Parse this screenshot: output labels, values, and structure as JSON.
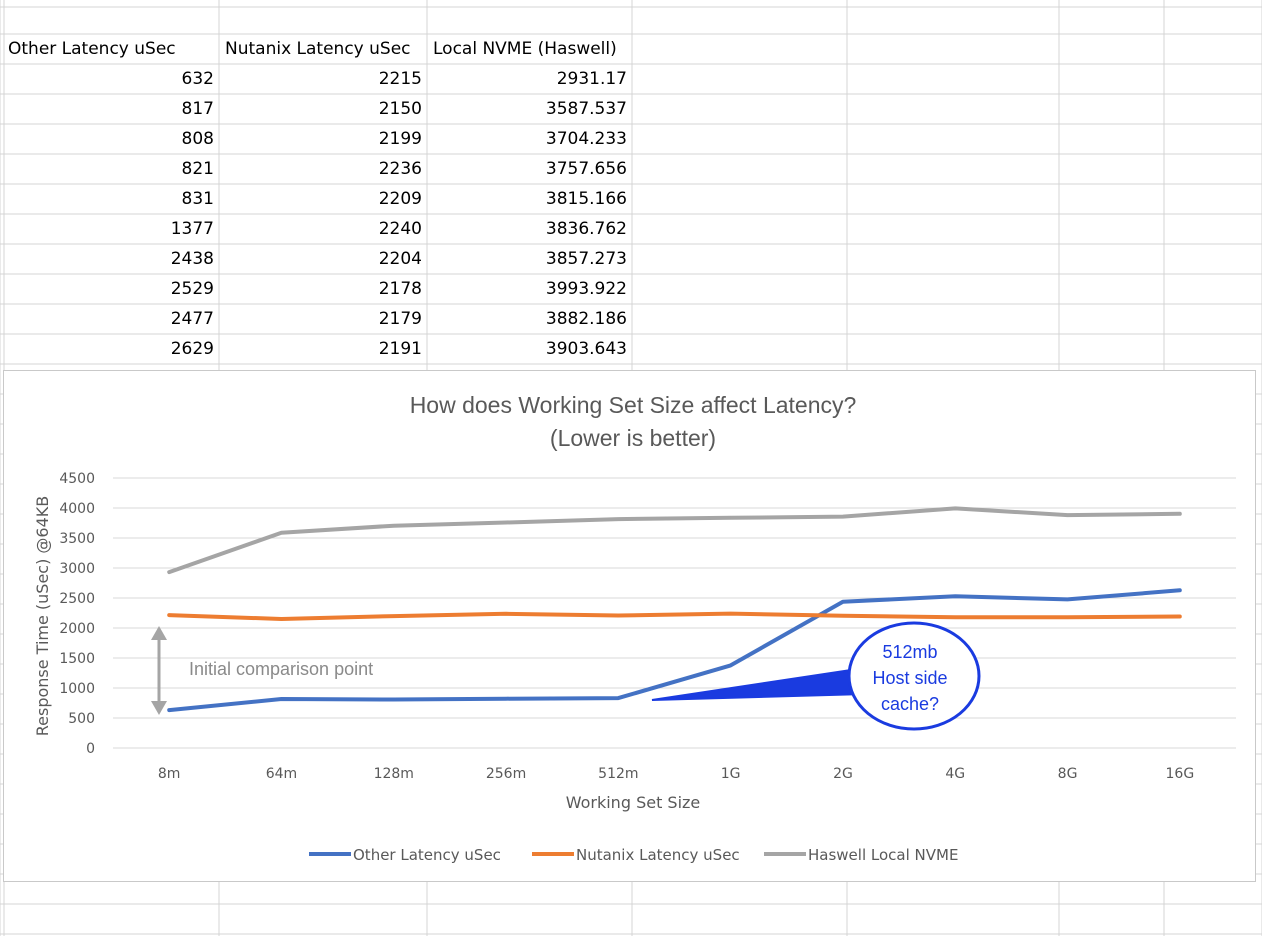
{
  "sheet": {
    "headers": [
      "Other  Latency uSec",
      "Nutanix Latency uSec",
      "Local NVME (Haswell)"
    ],
    "rows": [
      [
        "632",
        "2215",
        "2931.17"
      ],
      [
        "817",
        "2150",
        "3587.537"
      ],
      [
        "808",
        "2199",
        "3704.233"
      ],
      [
        "821",
        "2236",
        "3757.656"
      ],
      [
        "831",
        "2209",
        "3815.166"
      ],
      [
        "1377",
        "2240",
        "3836.762"
      ],
      [
        "2438",
        "2204",
        "3857.273"
      ],
      [
        "2529",
        "2178",
        "3993.922"
      ],
      [
        "2477",
        "2179",
        "3882.186"
      ],
      [
        "2629",
        "2191",
        "3903.643"
      ]
    ]
  },
  "chart_data": {
    "type": "line",
    "title": "How does Working Set Size affect Latency?",
    "subtitle": "(Lower is better)",
    "xlabel": "Working Set Size",
    "ylabel": "Response Time (uSec) @64KB",
    "categories": [
      "8m",
      "64m",
      "128m",
      "256m",
      "512m",
      "1G",
      "2G",
      "4G",
      "8G",
      "16G"
    ],
    "yticks": [
      "0",
      "500",
      "1000",
      "1500",
      "2000",
      "2500",
      "3000",
      "3500",
      "4000",
      "4500"
    ],
    "ylim": [
      0,
      4500
    ],
    "grid": true,
    "legend_position": "bottom",
    "series": [
      {
        "name": "Other  Latency uSec",
        "color": "#4472C4",
        "values": [
          632,
          817,
          808,
          821,
          831,
          1377,
          2438,
          2529,
          2477,
          2629
        ]
      },
      {
        "name": "Nutanix Latency uSec",
        "color": "#ED7D31",
        "values": [
          2215,
          2150,
          2199,
          2236,
          2209,
          2240,
          2204,
          2178,
          2179,
          2191
        ]
      },
      {
        "name": "Haswell Local NVME",
        "color": "#A5A5A5",
        "values": [
          2931.17,
          3587.537,
          3704.233,
          3757.656,
          3815.166,
          3836.762,
          3857.273,
          3993.922,
          3882.186,
          3903.643
        ]
      }
    ],
    "annotations": {
      "comparison_label": "Initial comparison point",
      "callout_lines": [
        "512mb",
        "Host side",
        "cache?"
      ],
      "callout_color": "#1A3BE0",
      "arrow_color": "#A5A5A5"
    }
  }
}
